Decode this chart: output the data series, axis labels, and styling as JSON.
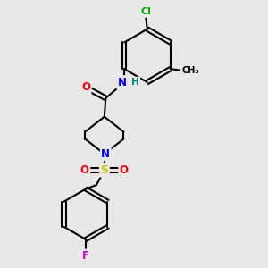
{
  "bg_color": "#e8e8e8",
  "bond_color": "#000000",
  "atom_colors": {
    "O": "#ff0000",
    "N": "#0000ff",
    "Cl": "#00aa00",
    "F": "#cc00cc",
    "S": "#cccc00",
    "H": "#008080",
    "C": "#000000"
  }
}
